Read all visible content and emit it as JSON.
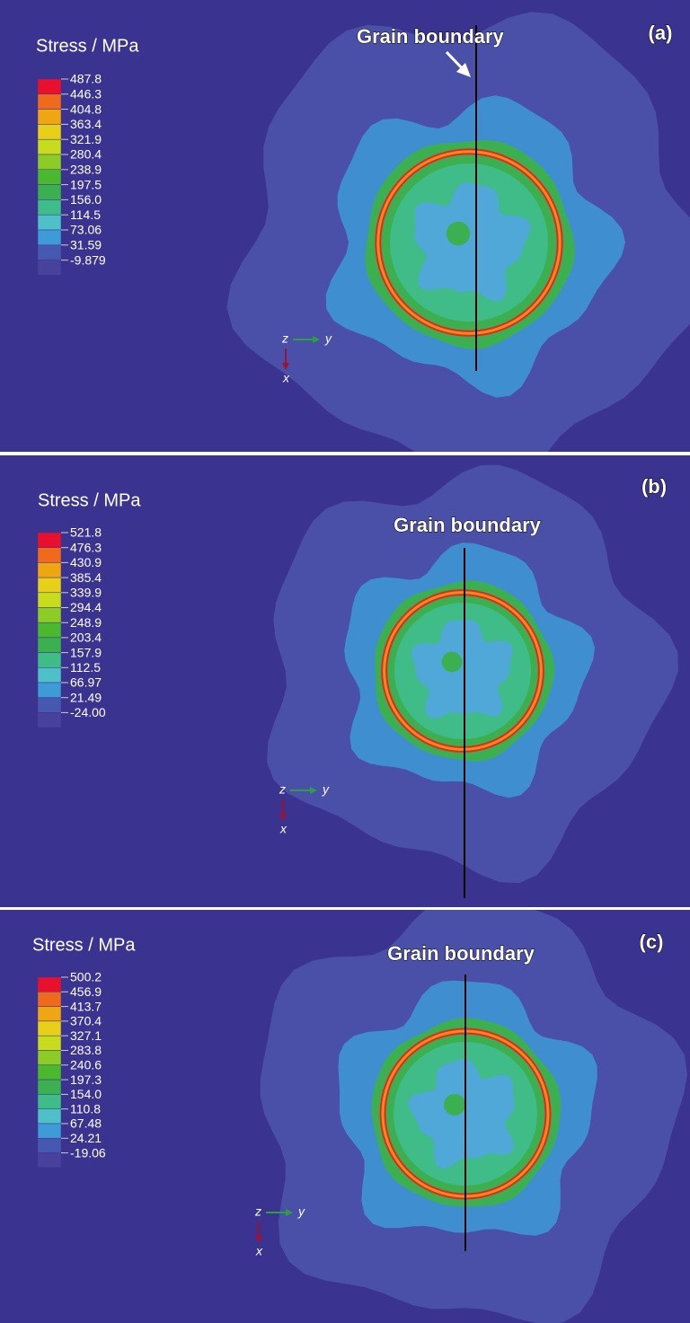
{
  "panels": [
    {
      "label": "(a)",
      "annotation": "Grain boundary",
      "legend": {
        "title": "Stress / MPa",
        "values": [
          "487.8",
          "446.3",
          "404.8",
          "363.4",
          "321.9",
          "280.4",
          "238.9",
          "197.5",
          "156.0",
          "114.5",
          "73.06",
          "31.59",
          "-9.879"
        ]
      },
      "axes": {
        "z": "z",
        "y": "y",
        "x": "x"
      }
    },
    {
      "label": "(b)",
      "annotation": "Grain boundary",
      "legend": {
        "title": "Stress / MPa",
        "values": [
          "521.8",
          "476.3",
          "430.9",
          "385.4",
          "339.9",
          "294.4",
          "248.9",
          "203.4",
          "157.9",
          "112.5",
          "66.97",
          "21.49",
          "-24.00"
        ]
      },
      "axes": {
        "z": "z",
        "y": "y",
        "x": "x"
      }
    },
    {
      "label": "(c)",
      "annotation": "Grain boundary",
      "legend": {
        "title": "Stress / MPa",
        "values": [
          "500.2",
          "456.9",
          "413.7",
          "370.4",
          "327.1",
          "283.8",
          "240.6",
          "197.3",
          "154.0",
          "110.8",
          "67.48",
          "24.21",
          "-19.06"
        ]
      },
      "axes": {
        "z": "z",
        "y": "y",
        "x": "x"
      }
    }
  ]
}
